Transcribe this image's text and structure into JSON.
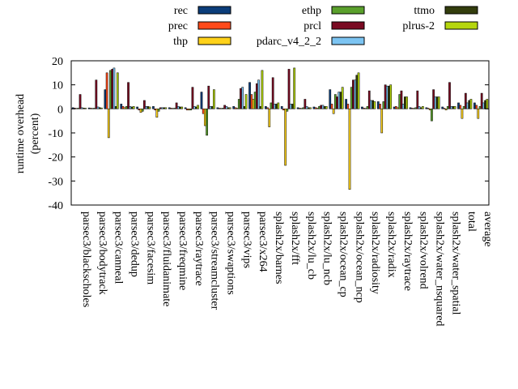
{
  "chart_data": {
    "type": "bar",
    "title": "",
    "ylabel": [
      "runtime overhead",
      "(percent)"
    ],
    "xlabel": "",
    "ylim": [
      -40,
      20
    ],
    "yticks": [
      -40,
      -30,
      -20,
      -10,
      0,
      10,
      20
    ],
    "grid": false,
    "legend_placement": "top",
    "categories": [
      "parsec3/blackscholes",
      "parsec3/bodytrack",
      "parsec3/canneal",
      "parsec3/dedup",
      "parsec3/facesim",
      "parsec3/fluidanimate",
      "parsec3/freqmine",
      "parsec3/raytrace",
      "parsec3/streamcluster",
      "parsec3/swaptions",
      "parsec3/vips",
      "parsec3/x264",
      "splash2x/barnes",
      "splash2x/fft",
      "splash2x/lu_cb",
      "splash2x/lu_ncb",
      "splash2x/ocean_cp",
      "splash2x/ocean_ncp",
      "splash2x/radiosity",
      "splash2x/radix",
      "splash2x/raytrace",
      "splash2x/volrend",
      "splash2x/water_nsquared",
      "splash2x/water_spatial",
      "total",
      "average"
    ],
    "series": [
      {
        "name": "rec",
        "color": "#0b3d7a",
        "values": [
          0.5,
          0.4,
          8,
          2,
          0.8,
          1,
          0.5,
          0.5,
          7,
          0.5,
          1,
          11,
          1,
          1,
          0.5,
          0.8,
          8,
          4,
          0.8,
          3,
          0.8,
          0.5,
          0.5,
          0.8,
          2.5,
          2.5
        ]
      },
      {
        "name": "prec",
        "color": "#ff4a1a",
        "values": [
          0.3,
          0.3,
          15,
          1,
          -0.5,
          -0.5,
          0.3,
          -0.5,
          -2,
          0.3,
          0.5,
          6,
          0.5,
          -0.5,
          0.3,
          0.5,
          2,
          2,
          0.3,
          2,
          1,
          0.3,
          0.3,
          0.3,
          1.5,
          1.5
        ]
      },
      {
        "name": "thp",
        "color": "#ffd21a",
        "values": [
          0.2,
          0.2,
          -12,
          0.5,
          -1.5,
          -3.5,
          0.2,
          -0.5,
          -7,
          0.2,
          0.3,
          4,
          -7.5,
          -23.5,
          0.2,
          0.3,
          -2,
          -33.5,
          0.2,
          -10,
          0.5,
          0.2,
          -0.5,
          -0.5,
          -4,
          -4
        ]
      },
      {
        "name": "ethp",
        "color": "#5aa02c",
        "values": [
          0.3,
          0.3,
          16,
          1,
          -1,
          -1,
          0.3,
          -0.5,
          -11,
          0.3,
          4,
          7,
          2.5,
          -1,
          0.5,
          1,
          6,
          9,
          1,
          3,
          6,
          0.5,
          -5,
          1,
          1,
          1
        ]
      },
      {
        "name": "prcl",
        "color": "#7a0a22",
        "values": [
          6,
          12,
          16.5,
          11,
          3.5,
          0.5,
          2.5,
          9,
          9.5,
          1.5,
          8.5,
          10.5,
          13,
          16.5,
          4,
          1.5,
          5,
          12,
          7.5,
          10,
          7.5,
          7.5,
          8,
          11,
          6.5,
          6.5
        ]
      },
      {
        "name": "pdarc_v4_2_2",
        "color": "#7cc4f2",
        "values": [
          0.5,
          0.8,
          17,
          1,
          1,
          0.5,
          1,
          1,
          1,
          1,
          9,
          12,
          2,
          2,
          1,
          1.5,
          7,
          12,
          3.5,
          9.5,
          2,
          1,
          5,
          1,
          2.5,
          2.5
        ]
      },
      {
        "name": "ttmo",
        "color": "#333d0d",
        "values": [
          0.3,
          0.5,
          1,
          0.8,
          1,
          0.5,
          0.8,
          0.8,
          1,
          0.5,
          1,
          1,
          2,
          2,
          0.5,
          1,
          7,
          14,
          3.5,
          9.5,
          5,
          0.5,
          5,
          1,
          3.5,
          3.5
        ]
      },
      {
        "name": "plrus-2",
        "color": "#b5d60e",
        "values": [
          0.3,
          0.4,
          15,
          1,
          0.8,
          0.5,
          0.8,
          1.5,
          8,
          0.5,
          6,
          16,
          2.5,
          17,
          0.5,
          1,
          9,
          15,
          3,
          10,
          5,
          1,
          5,
          1,
          4,
          4
        ]
      }
    ]
  }
}
